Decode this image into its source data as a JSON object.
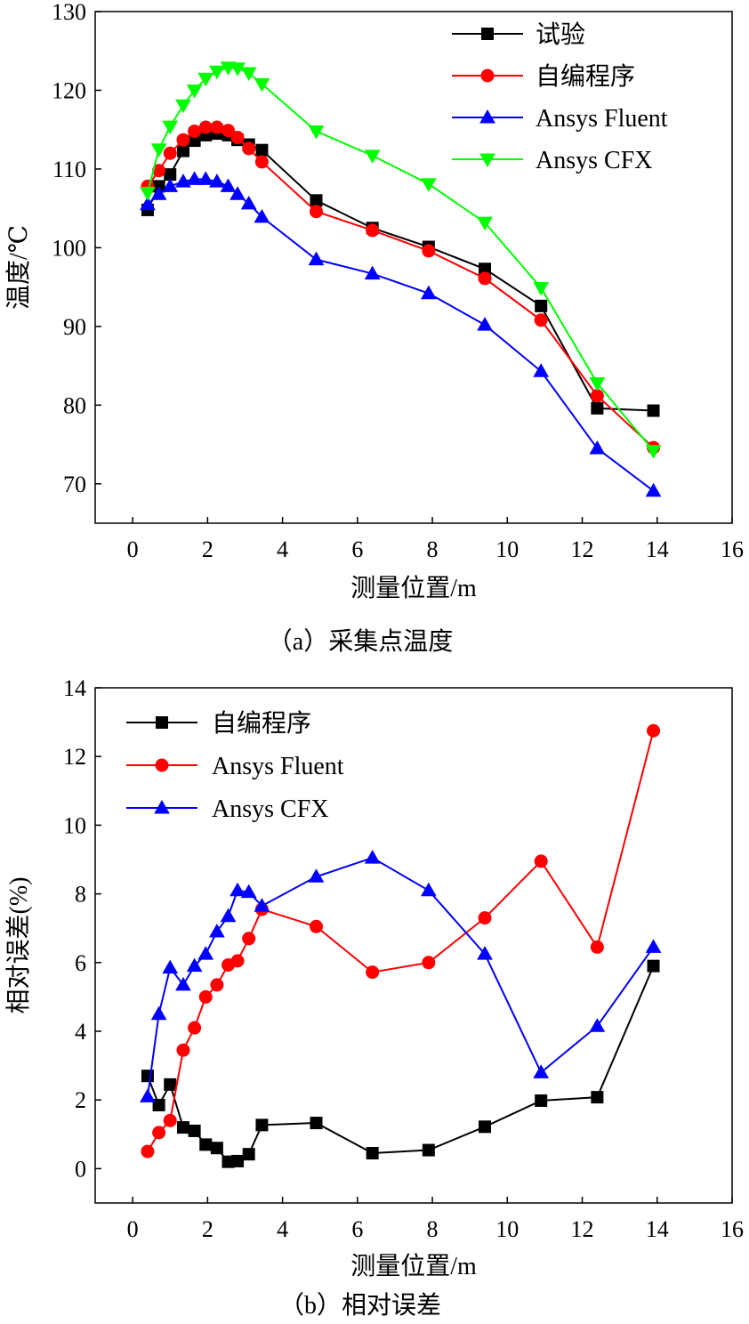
{
  "chart_data": [
    {
      "type": "line",
      "xlabel": "测量位置/m",
      "ylabel": "温度/℃",
      "caption": "（a）采集点温度",
      "xlim": [
        -1,
        16
      ],
      "ylim": [
        65,
        130
      ],
      "xticks": [
        "0",
        "2",
        "4",
        "6",
        "8",
        "10",
        "12",
        "14",
        "16"
      ],
      "yticks": [
        "70",
        "80",
        "90",
        "100",
        "110",
        "120",
        "130"
      ],
      "legend_position": "top-right",
      "series": [
        {
          "name": "试验",
          "color": "#000000",
          "marker": "square",
          "x": [
            0.4,
            0.7,
            1.0,
            1.35,
            1.65,
            1.95,
            2.25,
            2.55,
            2.8,
            3.1,
            3.45,
            4.9,
            6.4,
            7.9,
            9.4,
            10.9,
            12.4,
            13.9
          ],
          "y": [
            104.8,
            107.8,
            109.3,
            112.3,
            113.6,
            114.3,
            114.5,
            114.3,
            113.7,
            113.1,
            112.4,
            106.0,
            102.5,
            100.1,
            97.3,
            92.6,
            79.6,
            79.3
          ]
        },
        {
          "name": "自编程序",
          "color": "#ff0000",
          "marker": "circle",
          "x": [
            0.4,
            0.7,
            1.0,
            1.35,
            1.65,
            1.95,
            2.25,
            2.55,
            2.8,
            3.1,
            3.45,
            4.9,
            6.4,
            7.9,
            9.4,
            10.9,
            12.4,
            13.9
          ],
          "y": [
            107.8,
            109.8,
            112.0,
            113.7,
            114.8,
            115.3,
            115.3,
            114.9,
            114.0,
            112.6,
            110.9,
            104.6,
            102.2,
            99.6,
            96.1,
            90.8,
            81.2,
            74.6
          ]
        },
        {
          "name": "Ansys Fluent",
          "color": "#0000ff",
          "marker": "triangle-up",
          "x": [
            0.4,
            0.7,
            1.0,
            1.35,
            1.65,
            1.95,
            2.25,
            2.55,
            2.8,
            3.1,
            3.45,
            4.9,
            6.4,
            7.9,
            9.4,
            10.9,
            12.4,
            13.9
          ],
          "y": [
            105.5,
            106.8,
            107.8,
            108.4,
            108.7,
            108.7,
            108.4,
            107.8,
            106.8,
            105.6,
            103.9,
            98.5,
            96.7,
            94.2,
            90.2,
            84.3,
            74.5,
            69.1
          ]
        },
        {
          "name": "Ansys CFX",
          "color": "#00ff00",
          "marker": "triangle-down",
          "x": [
            0.4,
            0.7,
            1.0,
            1.35,
            1.65,
            1.95,
            2.25,
            2.55,
            2.8,
            3.1,
            3.45,
            4.9,
            6.4,
            7.9,
            9.4,
            10.9,
            12.4,
            13.9
          ],
          "y": [
            107.0,
            112.5,
            115.4,
            118.1,
            120.0,
            121.5,
            122.4,
            122.9,
            122.8,
            122.2,
            120.8,
            114.8,
            111.7,
            108.1,
            103.2,
            94.9,
            82.8,
            74.2
          ]
        }
      ]
    },
    {
      "type": "line",
      "xlabel": "测量位置/m",
      "ylabel": "相对误差(%)",
      "caption": "（b）相对误差",
      "xlim": [
        -1,
        16
      ],
      "ylim": [
        -1,
        14
      ],
      "xticks": [
        "0",
        "2",
        "4",
        "6",
        "8",
        "10",
        "12",
        "14",
        "16"
      ],
      "yticks": [
        "0",
        "2",
        "4",
        "6",
        "8",
        "10",
        "12",
        "14"
      ],
      "legend_position": "top-left",
      "series": [
        {
          "name": "自编程序",
          "color": "#000000",
          "marker": "square",
          "x": [
            0.4,
            0.7,
            1.0,
            1.35,
            1.65,
            1.95,
            2.25,
            2.55,
            2.8,
            3.1,
            3.45,
            4.9,
            6.4,
            7.9,
            9.4,
            10.9,
            12.4,
            13.9
          ],
          "y": [
            2.7,
            1.85,
            2.45,
            1.2,
            1.1,
            0.7,
            0.6,
            0.2,
            0.22,
            0.42,
            1.27,
            1.33,
            0.45,
            0.54,
            1.22,
            1.98,
            2.08,
            5.9
          ]
        },
        {
          "name": "Ansys Fluent",
          "color": "#ff0000",
          "marker": "circle",
          "x": [
            0.4,
            0.7,
            1.0,
            1.35,
            1.65,
            1.95,
            2.25,
            2.55,
            2.8,
            3.1,
            3.45,
            4.9,
            6.4,
            7.9,
            9.4,
            10.9,
            12.4,
            13.9
          ],
          "y": [
            0.5,
            1.05,
            1.4,
            3.45,
            4.1,
            5.0,
            5.35,
            5.93,
            6.05,
            6.7,
            7.55,
            7.05,
            5.72,
            6.0,
            7.3,
            8.95,
            6.45,
            12.75
          ]
        },
        {
          "name": "Ansys CFX",
          "color": "#0000ff",
          "marker": "triangle-up",
          "x": [
            0.4,
            0.7,
            1.0,
            1.35,
            1.65,
            1.95,
            2.25,
            2.55,
            2.8,
            3.1,
            3.45,
            4.9,
            6.4,
            7.9,
            9.4,
            10.9,
            12.4,
            13.9
          ],
          "y": [
            2.1,
            4.5,
            5.85,
            5.35,
            5.9,
            6.25,
            6.9,
            7.35,
            8.1,
            8.05,
            7.65,
            8.5,
            9.05,
            8.1,
            6.25,
            2.8,
            4.15,
            6.45
          ]
        }
      ]
    }
  ]
}
